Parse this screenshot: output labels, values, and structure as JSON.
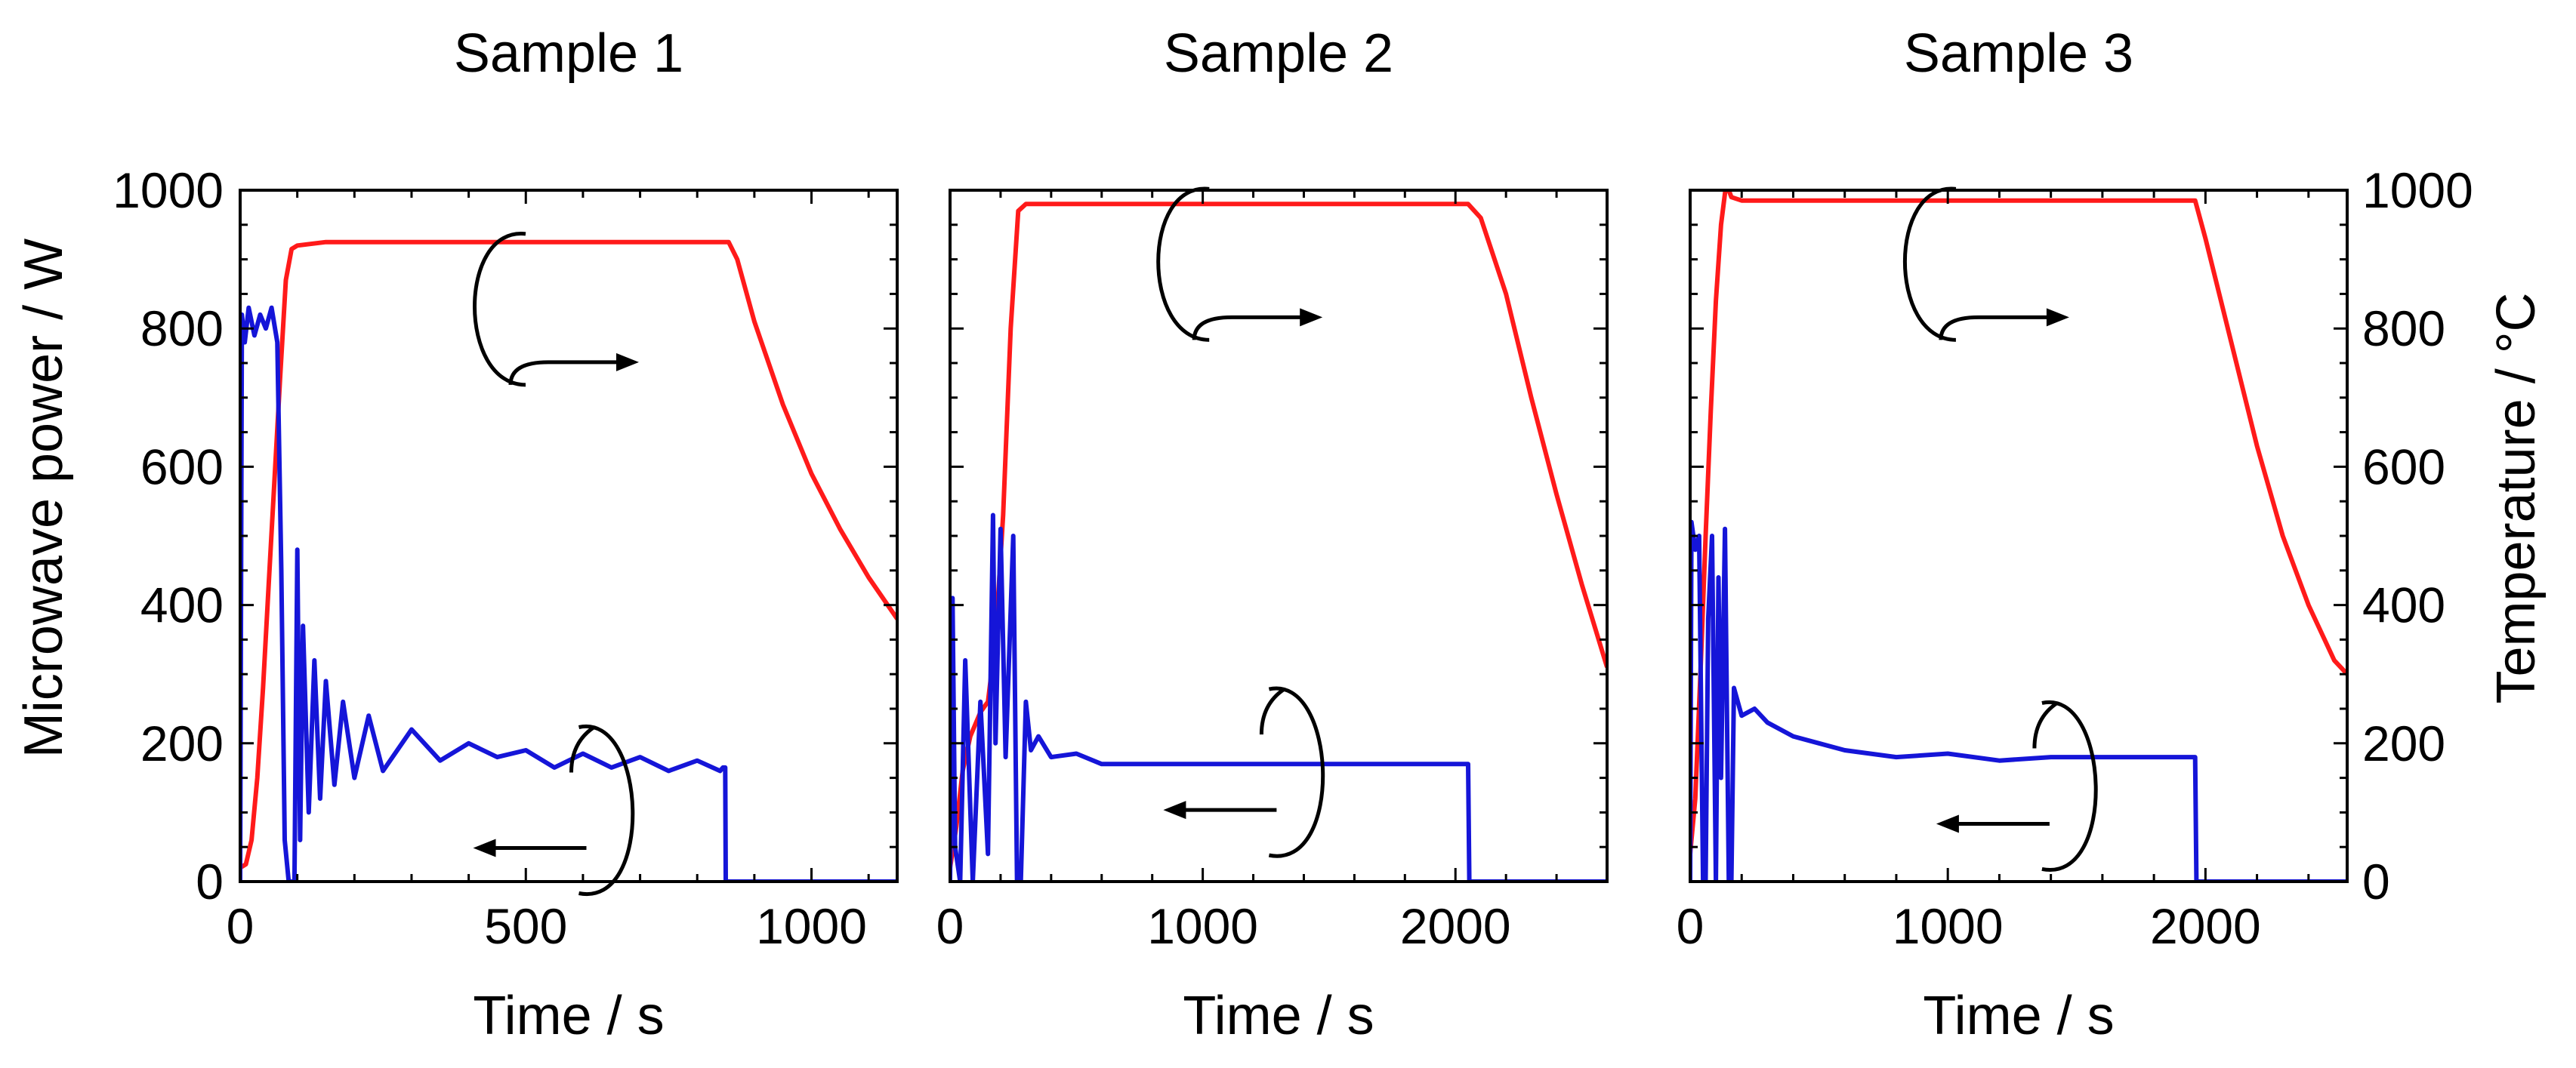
{
  "figure": {
    "left_axis_label": "Microwave power / W",
    "right_axis_label": "Temperature / °C",
    "x_axis_label": "Time / s",
    "colors": {
      "power": "#1515d8",
      "temperature": "#ff1a1a",
      "axes": "#000000"
    }
  },
  "chart_data": [
    {
      "type": "line",
      "title": "Sample 1",
      "xlabel": "Time / s",
      "ylabel": "Microwave power / W",
      "xlim": [
        0,
        1150
      ],
      "ylim": [
        0,
        1000
      ],
      "y2lim": [
        0,
        1000
      ],
      "xticks": [
        0,
        500,
        1000
      ],
      "yticks": [
        0,
        200,
        400,
        600,
        800,
        1000
      ],
      "series": [
        {
          "name": "Temperature",
          "axis": "right",
          "color": "#ff1a1a",
          "x": [
            0,
            10,
            20,
            30,
            40,
            50,
            60,
            70,
            80,
            90,
            100,
            150,
            300,
            500,
            700,
            855,
            870,
            900,
            950,
            1000,
            1050,
            1100,
            1150
          ],
          "values": [
            20,
            25,
            60,
            150,
            280,
            430,
            580,
            730,
            870,
            915,
            920,
            925,
            925,
            925,
            925,
            925,
            900,
            810,
            690,
            590,
            510,
            440,
            380
          ]
        },
        {
          "name": "Microwave power",
          "axis": "left",
          "color": "#1515d8",
          "x": [
            0,
            3,
            8,
            15,
            25,
            35,
            45,
            55,
            65,
            72,
            78,
            85,
            95,
            100,
            105,
            110,
            120,
            130,
            140,
            150,
            165,
            180,
            200,
            225,
            250,
            300,
            350,
            400,
            450,
            500,
            550,
            600,
            650,
            700,
            750,
            800,
            840,
            845,
            849,
            850,
            900,
            1000,
            1100,
            1150
          ],
          "values": [
            0,
            820,
            780,
            830,
            790,
            820,
            800,
            830,
            780,
            450,
            60,
            0,
            0,
            480,
            60,
            370,
            100,
            320,
            120,
            290,
            140,
            260,
            150,
            240,
            160,
            220,
            175,
            200,
            180,
            190,
            165,
            185,
            165,
            180,
            160,
            175,
            160,
            165,
            165,
            0,
            0,
            0,
            0,
            0
          ]
        }
      ]
    },
    {
      "type": "line",
      "title": "Sample 2",
      "xlabel": "Time / s",
      "ylabel": "Microwave power / W",
      "xlim": [
        0,
        2600
      ],
      "ylim": [
        0,
        1000
      ],
      "y2lim": [
        0,
        1000
      ],
      "xticks": [
        0,
        1000,
        2000
      ],
      "yticks": [
        0,
        200,
        400,
        600,
        800,
        1000
      ],
      "series": [
        {
          "name": "Temperature",
          "axis": "right",
          "color": "#ff1a1a",
          "x": [
            0,
            25,
            50,
            80,
            120,
            150,
            180,
            210,
            240,
            270,
            300,
            500,
            1000,
            1500,
            2050,
            2100,
            2200,
            2300,
            2400,
            2500,
            2600
          ],
          "values": [
            20,
            80,
            160,
            210,
            245,
            260,
            350,
            530,
            800,
            970,
            980,
            980,
            980,
            980,
            980,
            960,
            850,
            700,
            560,
            430,
            310
          ]
        },
        {
          "name": "Microwave power",
          "axis": "left",
          "color": "#1515d8",
          "x": [
            0,
            10,
            20,
            40,
            60,
            90,
            120,
            150,
            170,
            180,
            200,
            220,
            250,
            265,
            280,
            300,
            320,
            350,
            400,
            500,
            600,
            800,
            1000,
            1200,
            1400,
            1600,
            1800,
            2000,
            2050,
            2055,
            2100,
            2300,
            2600
          ],
          "values": [
            0,
            410,
            50,
            0,
            320,
            0,
            260,
            40,
            530,
            200,
            510,
            180,
            500,
            0,
            0,
            260,
            190,
            210,
            180,
            185,
            170,
            170,
            170,
            170,
            170,
            170,
            170,
            170,
            170,
            0,
            0,
            0,
            0
          ]
        }
      ]
    },
    {
      "type": "line",
      "title": "Sample 3",
      "xlabel": "Time / s",
      "ylabel": "Temperature / °C",
      "xlim": [
        0,
        2550
      ],
      "ylim": [
        0,
        1000
      ],
      "y2lim": [
        0,
        1000
      ],
      "xticks": [
        0,
        1000,
        2000
      ],
      "yticks": [
        0,
        200,
        400,
        600,
        800,
        1000
      ],
      "series": [
        {
          "name": "Temperature",
          "axis": "right",
          "color": "#ff1a1a",
          "x": [
            0,
            20,
            40,
            60,
            80,
            100,
            120,
            140,
            160,
            200,
            500,
            1000,
            1500,
            1960,
            2000,
            2100,
            2200,
            2300,
            2400,
            2500,
            2550
          ],
          "values": [
            40,
            120,
            300,
            500,
            680,
            840,
            950,
            1010,
            990,
            985,
            985,
            985,
            985,
            985,
            930,
            780,
            630,
            500,
            400,
            320,
            300
          ]
        },
        {
          "name": "Microwave power",
          "axis": "left",
          "color": "#1515d8",
          "x": [
            0,
            5,
            20,
            35,
            50,
            60,
            70,
            85,
            100,
            110,
            120,
            135,
            150,
            160,
            170,
            200,
            250,
            300,
            400,
            500,
            600,
            800,
            1000,
            1200,
            1400,
            1600,
            1800,
            1960,
            1965,
            2100,
            2550
          ],
          "values": [
            0,
            520,
            480,
            500,
            0,
            0,
            380,
            500,
            0,
            440,
            150,
            510,
            0,
            0,
            280,
            240,
            250,
            230,
            210,
            200,
            190,
            180,
            185,
            175,
            180,
            180,
            180,
            180,
            0,
            0,
            0
          ]
        }
      ]
    }
  ]
}
